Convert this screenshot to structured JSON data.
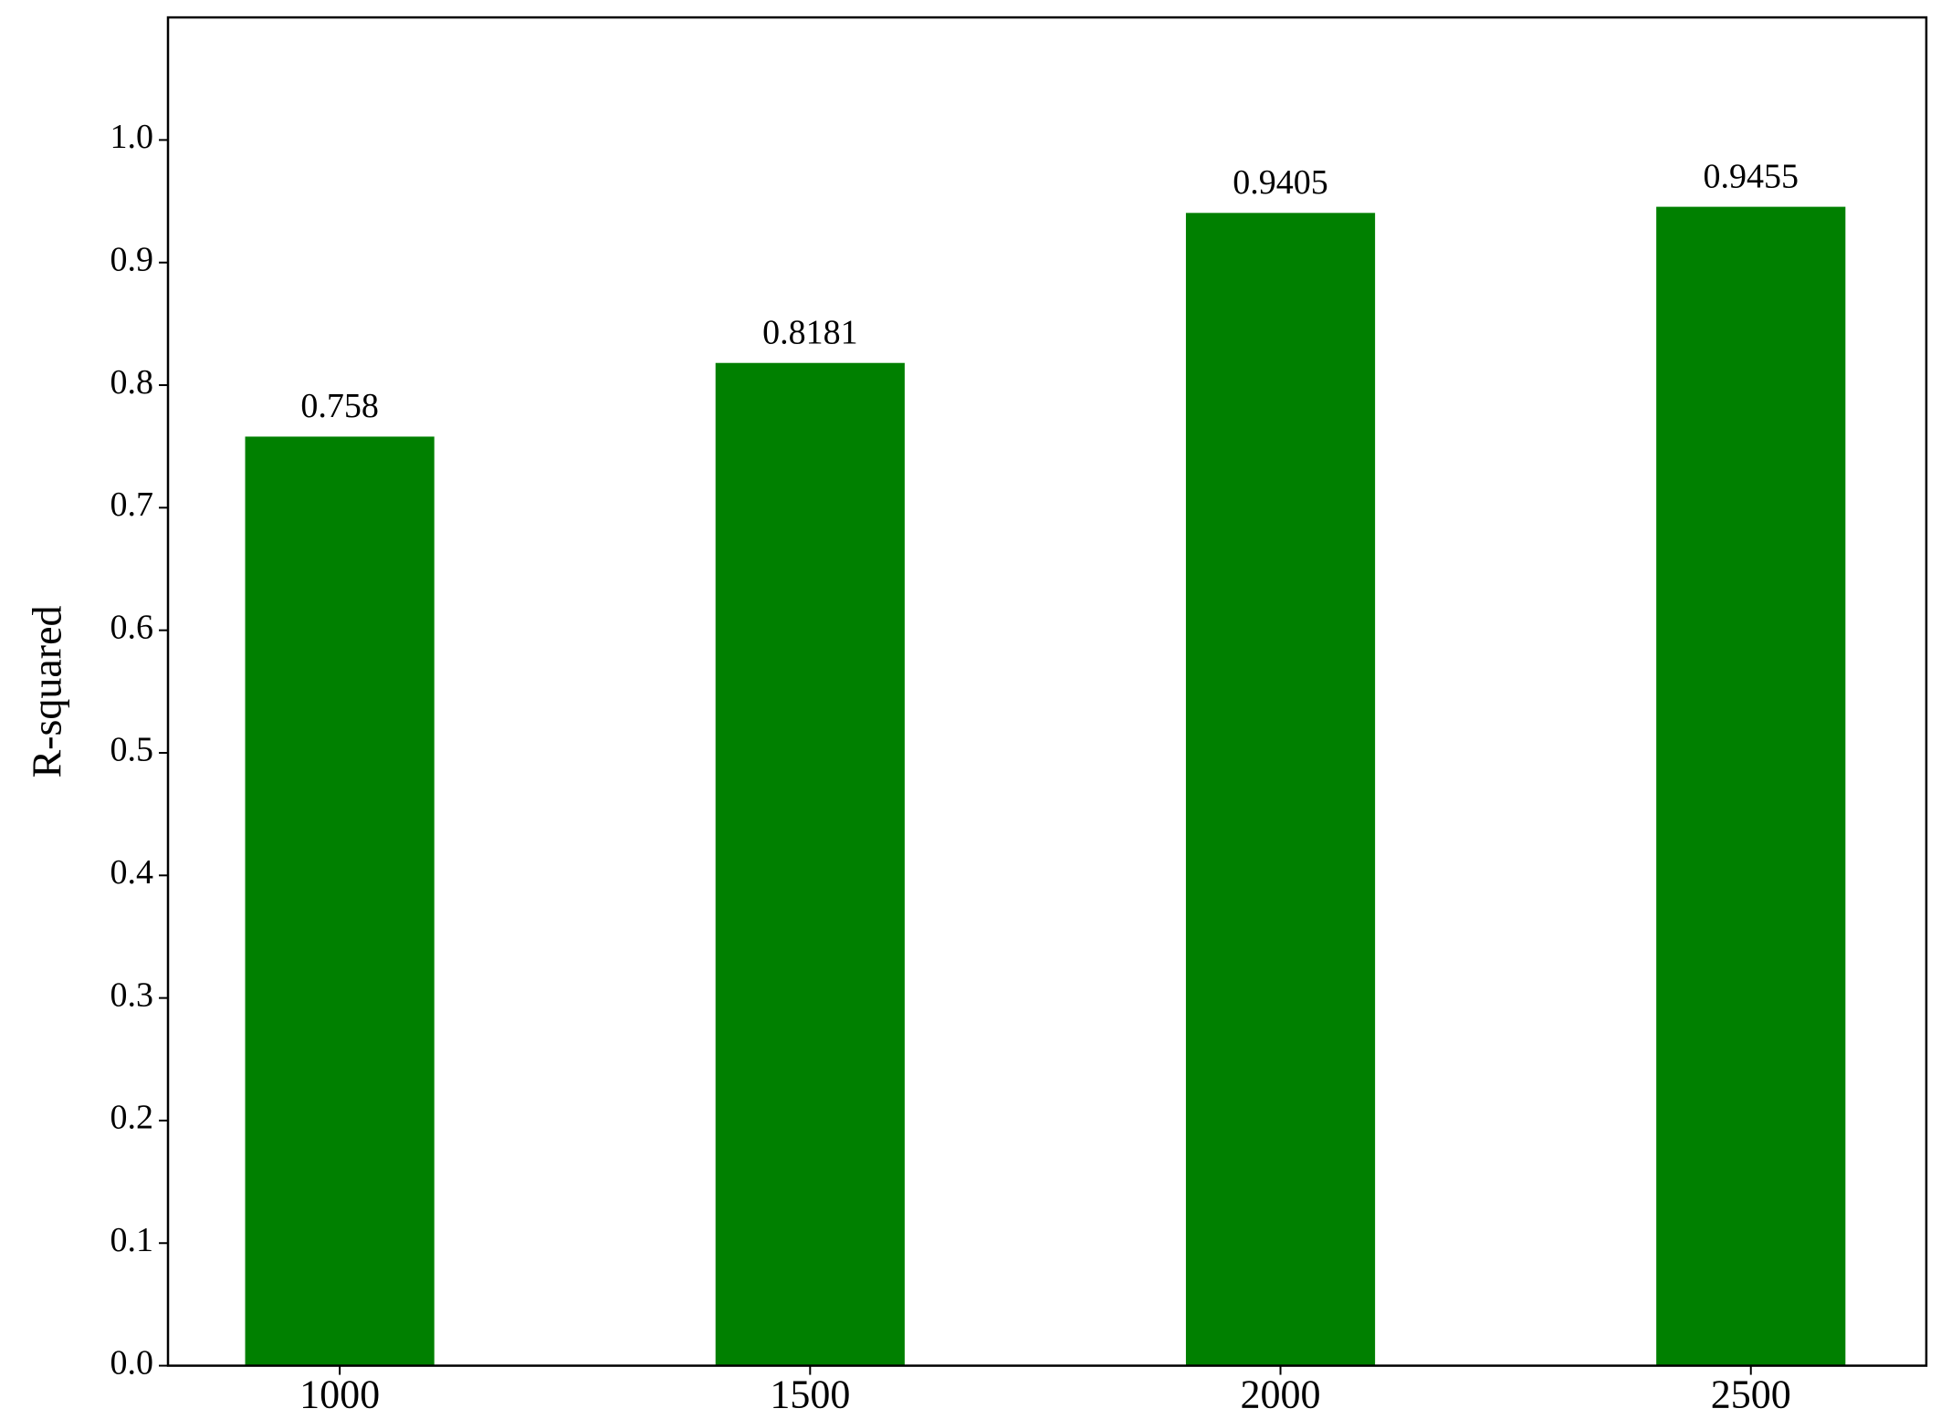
{
  "chart_data": {
    "type": "bar",
    "y_label": "R-squared",
    "categories": [
      "1000",
      "1500",
      "2000",
      "2500"
    ],
    "values": [
      0.758,
      0.8181,
      0.9405,
      0.9455
    ],
    "color": "#008000",
    "ylim": [
      0,
      1.1
    ],
    "yticks": [
      {
        "value": 0,
        "label": "0.0"
      },
      0.1,
      0.2,
      0.3,
      0.4,
      0.5,
      0.6,
      0.7,
      0.8,
      0.9,
      {
        "value": 1,
        "label": "1.0"
      }
    ],
    "grid": false
  }
}
